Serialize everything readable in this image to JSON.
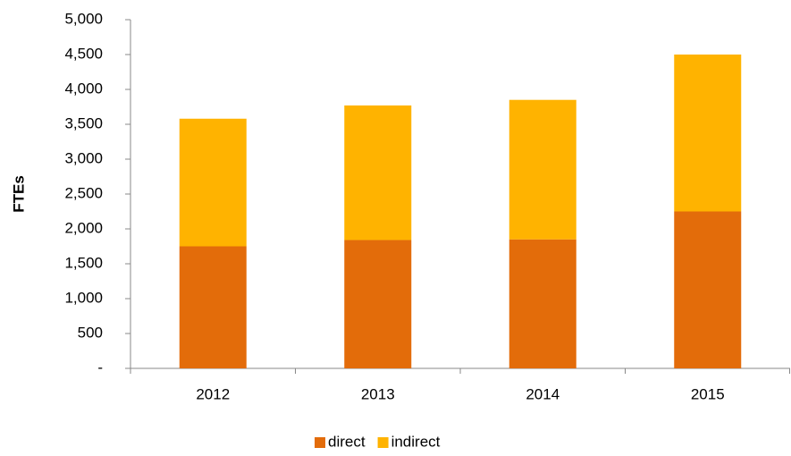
{
  "chart_data": {
    "type": "stacked_bar",
    "y_label": "FTEs",
    "categories": [
      "2012",
      "2013",
      "2014",
      "2015"
    ],
    "series": [
      {
        "name": "direct",
        "color": "#e36c0a",
        "values": [
          1750,
          1840,
          1850,
          2250
        ]
      },
      {
        "name": "indirect",
        "color": "#ffb300",
        "values": [
          1830,
          1930,
          2000,
          2250
        ]
      }
    ],
    "ylim": [
      0,
      5000
    ],
    "yticks": [
      {
        "value": 0,
        "label": "-"
      },
      500,
      {
        "value": 1000,
        "label": "1,000"
      },
      {
        "value": 1500,
        "label": "1,500"
      },
      {
        "value": 2000,
        "label": "2,000"
      },
      {
        "value": 2500,
        "label": "2,500"
      },
      {
        "value": 3000,
        "label": "3,000"
      },
      {
        "value": 3500,
        "label": "3,500"
      },
      {
        "value": 4000,
        "label": "4,000"
      },
      {
        "value": 4500,
        "label": "4,500"
      },
      {
        "value": 5000,
        "label": "5,000"
      }
    ],
    "grid": false,
    "legend": "bottom"
  }
}
